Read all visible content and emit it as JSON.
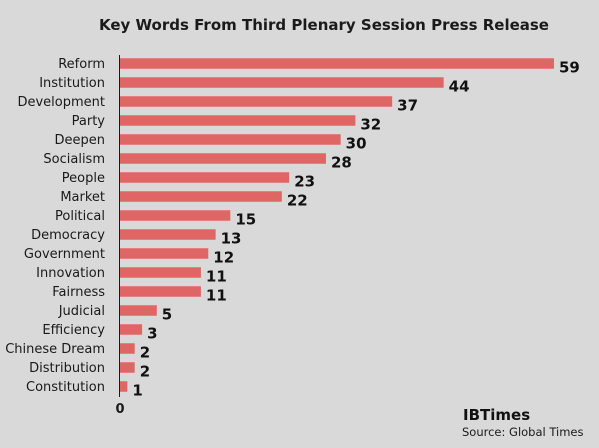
{
  "chart_data": {
    "type": "bar",
    "orientation": "horizontal",
    "title": "Key Words From Third Plenary Session Press Release",
    "categories": [
      "Reform",
      "Institution",
      "Development",
      "Party",
      "Deepen",
      "Socialism",
      "People",
      "Market",
      "Political",
      "Democracy",
      "Government",
      "Innovation",
      "Fairness",
      "Judicial",
      "Efficiency",
      "Chinese Dream",
      "Distribution",
      "Constitution"
    ],
    "values": [
      59,
      44,
      37,
      32,
      30,
      28,
      23,
      22,
      15,
      13,
      12,
      11,
      11,
      5,
      3,
      2,
      2,
      1
    ],
    "x_tick_label": "0",
    "xlim": [
      0,
      59
    ],
    "grid": false,
    "bar_color": "#e06666"
  },
  "footer": {
    "brand": "IBTimes",
    "source": "Source: Global Times"
  }
}
